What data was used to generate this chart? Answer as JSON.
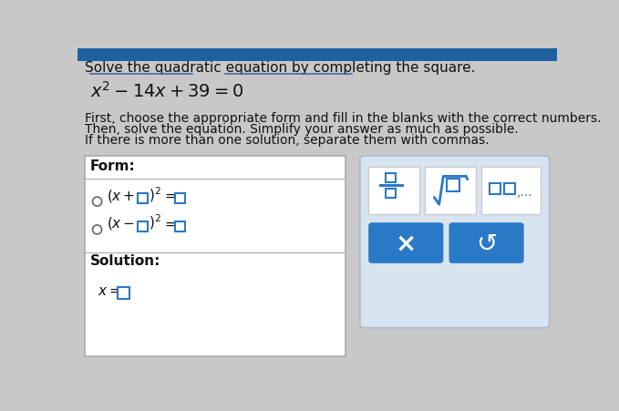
{
  "bg_color": "#c8c8c8",
  "title_line": "Solve the quadratic equation by completing the square.",
  "instruction1": "First, choose the appropriate form and fill in the blanks with the correct numbers.",
  "instruction2": "Then, solve the equation. Simplify your answer as much as possible.",
  "instruction3": "If there is more than one solution, separate them with commas.",
  "form_label": "Form:",
  "solution_label": "Solution:",
  "box_bg": "#ffffff",
  "btn_bg": "#2979c7",
  "btn_x_label": "×",
  "btn_undo_label": "↺",
  "panel_bg": "#d8e4f0",
  "underline_color": "#4466aa",
  "text_color": "#111111",
  "small_box_color": "#2979c7",
  "top_stripe_color": "#2060a0"
}
